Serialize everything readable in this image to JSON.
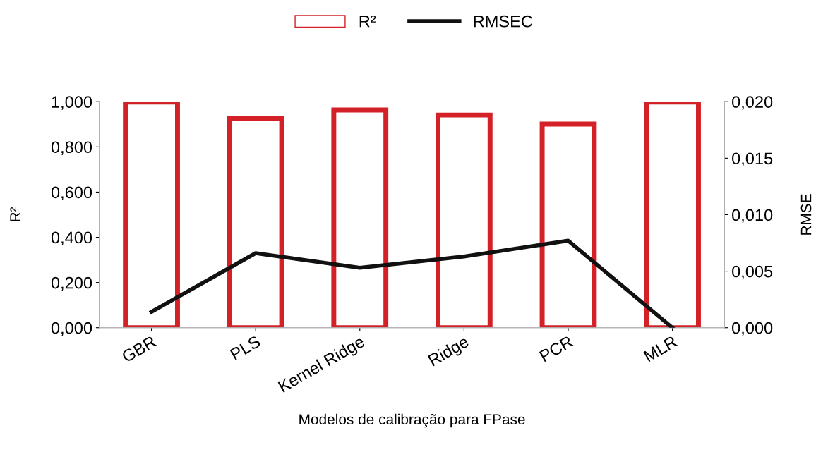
{
  "chart_data": {
    "type": "bar",
    "xlabel": "Modelos de calibração para FPase",
    "ylabel": "R²",
    "y2label": "RMSE",
    "categories": [
      "GBR",
      "PLS",
      "Kernel Ridge",
      "Ridge",
      "PCR",
      "MLR"
    ],
    "series": [
      {
        "name": "R²",
        "color": "#d42027",
        "values": [
          0.998,
          0.926,
          0.963,
          0.941,
          0.901,
          0.998
        ]
      },
      {
        "name": "RMSEC",
        "type": "line",
        "axis": "y2",
        "color": "#111111",
        "values": [
          0.0014,
          0.0066,
          0.0053,
          0.0063,
          0.0077,
          0.0
        ]
      }
    ],
    "ylim": [
      0,
      1
    ],
    "yticks": [
      {
        "value": 0,
        "label": "0,000"
      },
      {
        "value": 0.2,
        "label": "0,200"
      },
      {
        "value": 0.4,
        "label": "0,400"
      },
      {
        "value": 0.6,
        "label": "0,600"
      },
      {
        "value": 0.8,
        "label": "0,800"
      },
      {
        "value": 1,
        "label": "1,000"
      }
    ],
    "y2lim": [
      0,
      0.02
    ],
    "y2ticks": [
      {
        "value": 0,
        "label": "0,000"
      },
      {
        "value": 0.005,
        "label": "0,005"
      },
      {
        "value": 0.01,
        "label": "0,010"
      },
      {
        "value": 0.015,
        "label": "0,015"
      },
      {
        "value": 0.02,
        "label": "0,020"
      }
    ],
    "grid": false,
    "legend": "top",
    "marker": "none",
    "line_style": "solid"
  }
}
